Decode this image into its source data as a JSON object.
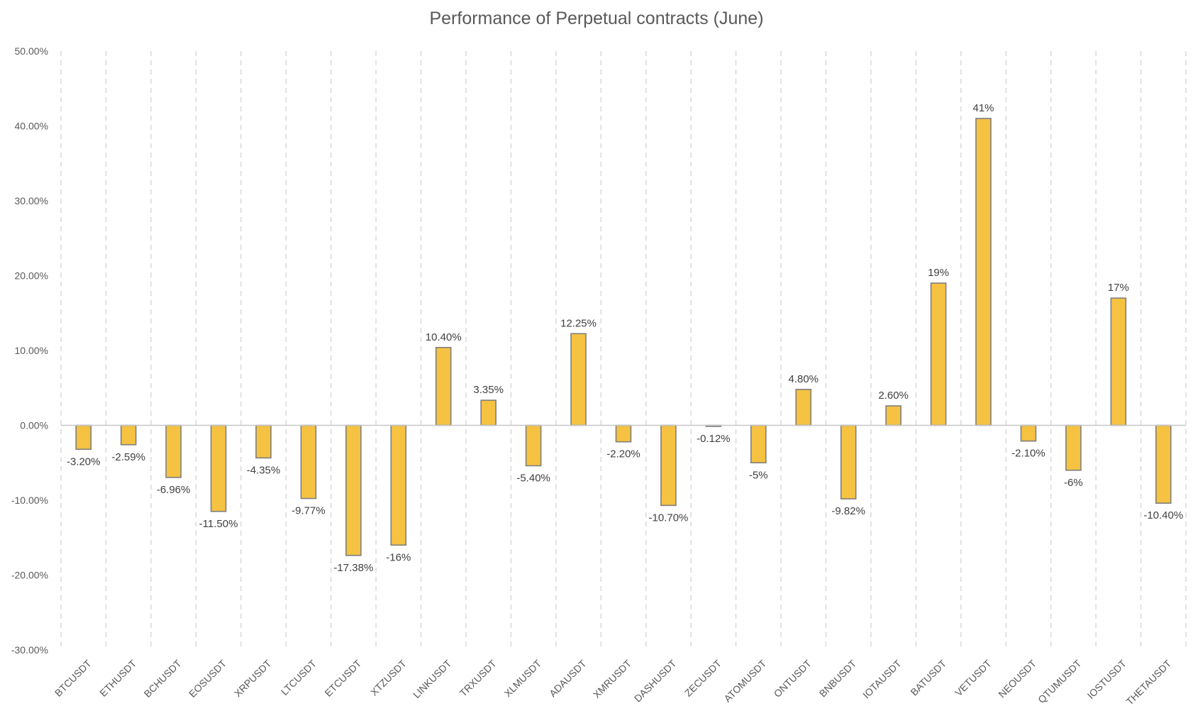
{
  "chart_data": {
    "type": "bar",
    "title": "Performance of Perpetual contracts (June)",
    "xlabel": "",
    "ylabel": "",
    "ylim": [
      -30,
      50
    ],
    "yticks": [
      50,
      40,
      30,
      20,
      10,
      0,
      -10,
      -20,
      -30
    ],
    "ytick_labels": [
      "50.00%",
      "40.00%",
      "30.00%",
      "20.00%",
      "10.00%",
      "0.00%",
      "-10.00%",
      "-20.00%",
      "-30.00%"
    ],
    "grid": "vertical dashed",
    "categories": [
      "BTCUSDT",
      "ETHUSDT",
      "BCHUSDT",
      "EOSUSDT",
      "XRPUSDT",
      "LTCUSDT",
      "ETCUSDT",
      "XTZUSDT",
      "LINKUSDT",
      "TRXUSDT",
      "XLMUSDT",
      "ADAUSDT",
      "XMRUSDT",
      "DASHUSDT",
      "ZECUSDT",
      "ATOMUSDT",
      "ONTUSDT",
      "BNBUSDT",
      "IOTAUSDT",
      "BATUSDT",
      "VETUSDT",
      "NEOUSDT",
      "QTUMUSDT",
      "IOSTUSDT",
      "THETAUSDT"
    ],
    "values": [
      -3.2,
      -2.59,
      -6.96,
      -11.5,
      -4.35,
      -9.77,
      -17.38,
      -16,
      10.4,
      3.35,
      -5.4,
      12.25,
      -2.2,
      -10.7,
      -0.12,
      -5,
      4.8,
      -9.82,
      2.6,
      19,
      41,
      -2.1,
      -6,
      17,
      -10.4
    ],
    "data_labels": [
      "-3.20%",
      "-2.59%",
      "-6.96%",
      "-11.50%",
      "-4.35%",
      "-9.77%",
      "-17.38%",
      "-16%",
      "10.40%",
      "3.35%",
      "-5.40%",
      "12.25%",
      "-2.20%",
      "-10.70%",
      "-0.12%",
      "-5%",
      "4.80%",
      "-9.82%",
      "2.60%",
      "19%",
      "41%",
      "-2.10%",
      "-6%",
      "17%",
      "-10.40%"
    ],
    "colors": {
      "bar_fill": "#F5C242",
      "bar_stroke": "#7F7F7F",
      "grid": "#D0D0D0",
      "axis": "#C8C8C8"
    }
  }
}
